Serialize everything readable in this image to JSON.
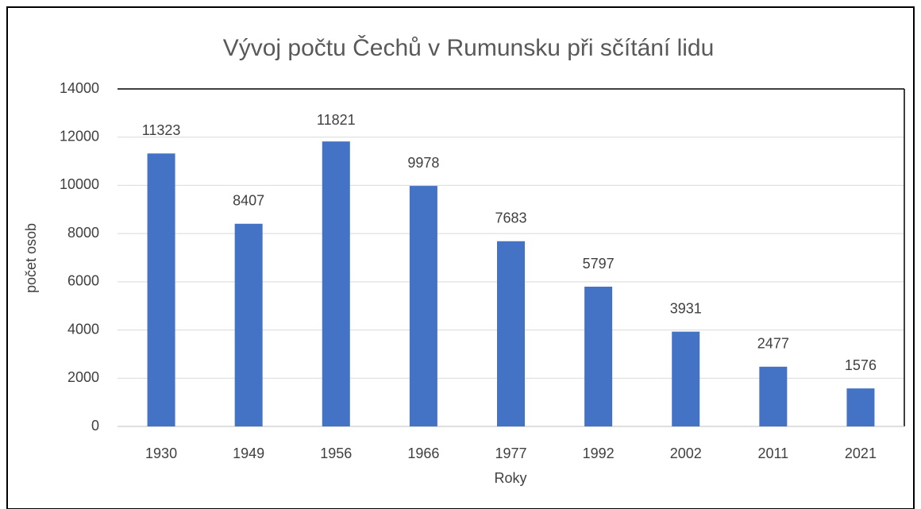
{
  "chart_data": {
    "type": "bar",
    "title": "Vývoj počtu Čechů v Rumunsku při sčítání lidu",
    "x_label": "Roky",
    "y_label": "počet osob",
    "categories": [
      "1930",
      "1949",
      "1956",
      "1966",
      "1977",
      "1992",
      "2002",
      "2011",
      "2021"
    ],
    "values": [
      11323,
      8407,
      11821,
      9978,
      7683,
      5797,
      3931,
      2477,
      1576
    ],
    "color": "#4472c4",
    "ylim": [
      0,
      14000
    ],
    "yticks": [
      0,
      2000,
      4000,
      6000,
      8000,
      10000,
      12000,
      14000
    ],
    "grid": true,
    "data_labels": true
  }
}
